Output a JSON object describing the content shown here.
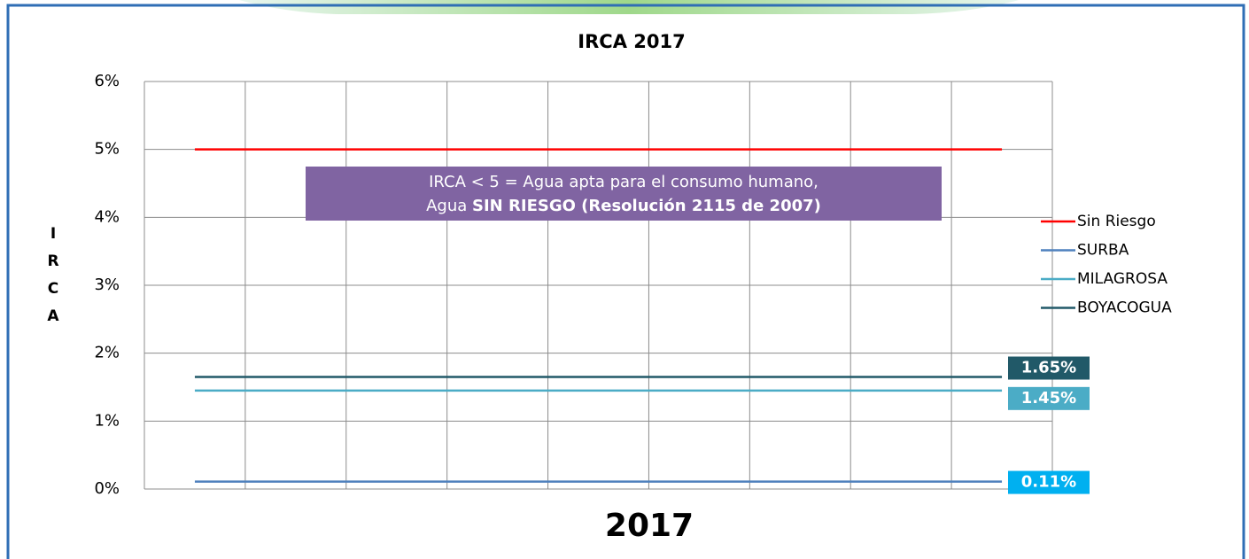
{
  "chart_data": {
    "type": "line",
    "title": "IRCA 2017",
    "x_label": "2017",
    "y_label": "IRCA",
    "annotations": [
      "IRCA  < 5 = Agua apta para el consumo humano,",
      "Agua ",
      "SIN RIESGO (Resolución 2115 de 2007)"
    ],
    "categories": [
      null,
      null,
      null,
      null,
      null,
      null,
      null,
      null,
      null
    ],
    "series": [
      {
        "name": "Sin Riesgo",
        "color": "#ff0000",
        "values": [
          5,
          5,
          5,
          5,
          5,
          5,
          5,
          5,
          5
        ]
      },
      {
        "name": "SURBA",
        "color": "#4f81bd",
        "label_color": "#00b0f0",
        "values": [
          0.11,
          0.11,
          0.11,
          0.11,
          0.11,
          0.11,
          0.11,
          0.11,
          0.11
        ],
        "value_labels": [
          null,
          null,
          null,
          null,
          null,
          null,
          null,
          null,
          "0.11%"
        ]
      },
      {
        "name": "MILAGROSA",
        "color": "#4bacc6",
        "label_color": "#4bacc6",
        "values": [
          1.45,
          1.45,
          1.45,
          1.45,
          1.45,
          1.45,
          1.45,
          1.45,
          1.45
        ],
        "value_labels": [
          null,
          null,
          null,
          null,
          null,
          null,
          null,
          null,
          "1.45%"
        ]
      },
      {
        "name": "BOYACOGUA",
        "color": "#215968",
        "label_color": "#215968",
        "values": [
          1.65,
          1.65,
          1.65,
          1.65,
          1.65,
          1.65,
          1.65,
          1.65,
          1.65
        ],
        "value_labels": [
          null,
          null,
          null,
          null,
          null,
          null,
          null,
          null,
          "1.65%"
        ]
      }
    ],
    "ylim": [
      0,
      6
    ],
    "yticks": [
      {
        "value": 0,
        "label": "0%"
      },
      {
        "value": 1,
        "label": "1%"
      },
      {
        "value": 2,
        "label": "2%"
      },
      {
        "value": 3,
        "label": "3%"
      },
      {
        "value": 4,
        "label": "4%"
      },
      {
        "value": 5,
        "label": "5%"
      },
      {
        "value": 6,
        "label": "6%"
      }
    ],
    "grid": true,
    "legend": "right"
  }
}
